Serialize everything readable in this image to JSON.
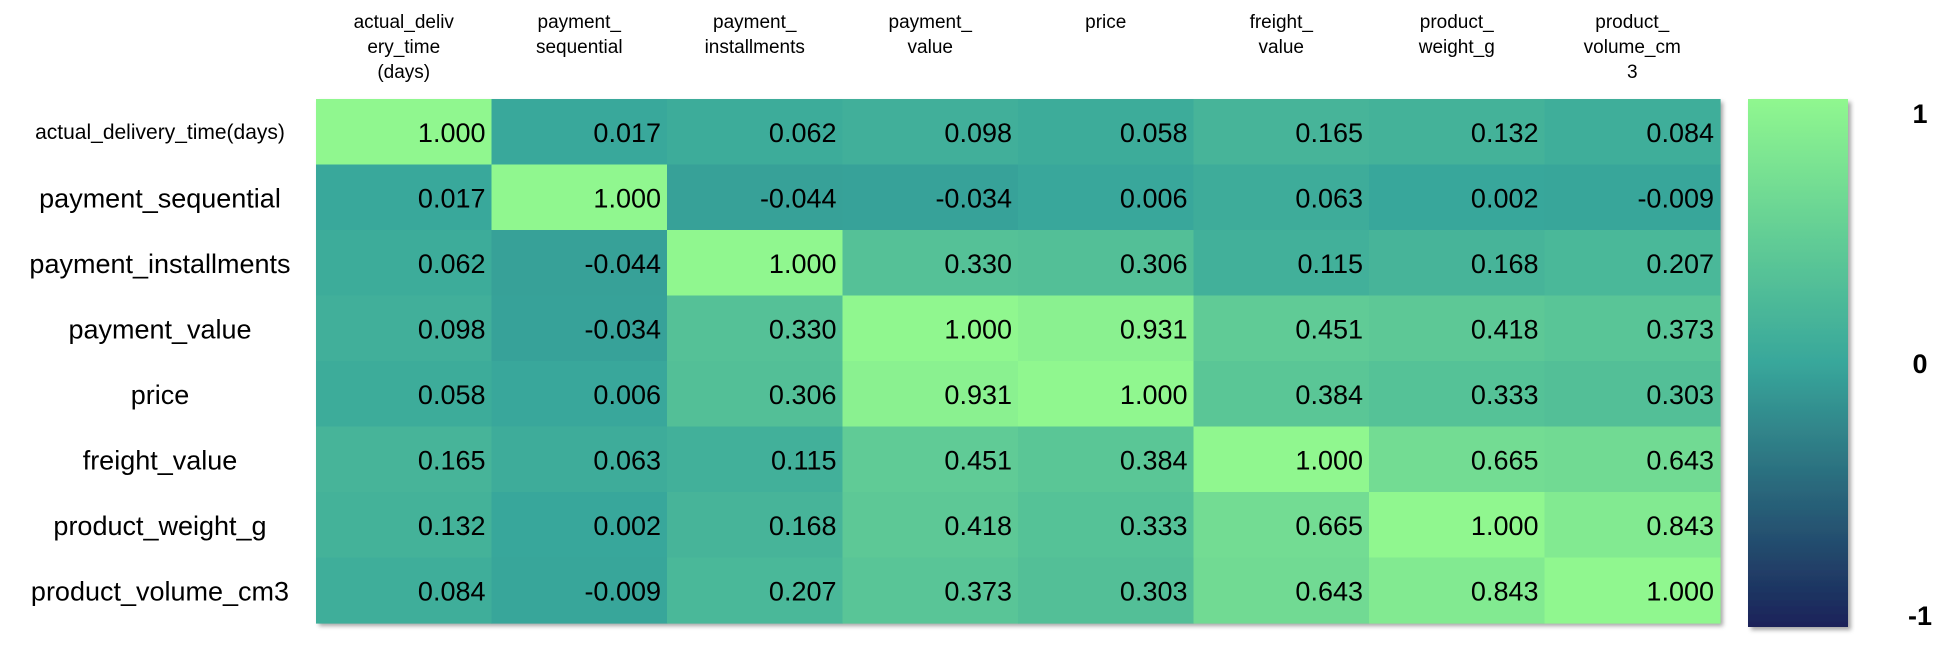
{
  "chart_data": {
    "type": "heatmap",
    "columns": [
      [
        "actual_deliv",
        "ery_time",
        "(days)"
      ],
      [
        "payment_",
        "sequential"
      ],
      [
        "payment_",
        "installments"
      ],
      [
        "payment_",
        "value"
      ],
      [
        "price"
      ],
      [
        "freight_",
        "value"
      ],
      [
        "product_",
        "weight_g"
      ],
      [
        "product_",
        "volume_cm",
        "3"
      ]
    ],
    "rows": [
      "actual_delivery_time(days)",
      "payment_sequential",
      "payment_installments",
      "payment_value",
      "price",
      "freight_value",
      "product_weight_g",
      "product_volume_cm3"
    ],
    "values": [
      [
        1.0,
        0.017,
        0.062,
        0.098,
        0.058,
        0.165,
        0.132,
        0.084
      ],
      [
        0.017,
        1.0,
        -0.044,
        -0.034,
        0.006,
        0.063,
        0.002,
        -0.009
      ],
      [
        0.062,
        -0.044,
        1.0,
        0.33,
        0.306,
        0.115,
        0.168,
        0.207
      ],
      [
        0.098,
        -0.034,
        0.33,
        1.0,
        0.931,
        0.451,
        0.418,
        0.373
      ],
      [
        0.058,
        0.006,
        0.306,
        0.931,
        1.0,
        0.384,
        0.333,
        0.303
      ],
      [
        0.165,
        0.063,
        0.115,
        0.451,
        0.384,
        1.0,
        0.665,
        0.643
      ],
      [
        0.132,
        0.002,
        0.168,
        0.418,
        0.333,
        0.665,
        1.0,
        0.843
      ],
      [
        0.084,
        -0.009,
        0.207,
        0.373,
        0.303,
        0.643,
        0.843,
        1.0
      ]
    ],
    "value_format": "3 decimals",
    "vmin": -1,
    "vmax": 1,
    "colorbar": {
      "ticks": [
        "1",
        "0",
        "-1"
      ],
      "colors": {
        "low": "#1a2259",
        "mid": "#38a79b",
        "high": "#90f78f"
      }
    },
    "cell_text_color": "#000000"
  }
}
